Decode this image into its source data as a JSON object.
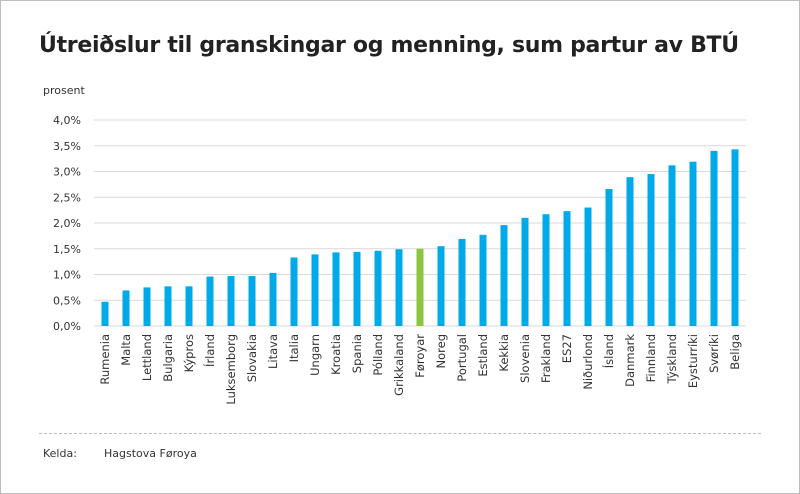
{
  "chart_data": {
    "type": "bar",
    "title": "Útreiðslur til granskingar og menning, sum partur av BTÚ",
    "ylabel": "prosent",
    "ylim": [
      0,
      4
    ],
    "yticks": [
      "0,0%",
      "0,5%",
      "1,0%",
      "1,5%",
      "2,0%",
      "2,5%",
      "3,0%",
      "3,5%",
      "4,0%"
    ],
    "grid": true,
    "categories": [
      "Rumenia",
      "Malta",
      "Lettland",
      "Bulgaria",
      "Kýpros",
      "Írland",
      "Luksemborg",
      "Slovakia",
      "Litava",
      "Italia",
      "Ungarn",
      "Kroatia",
      "Spania",
      "Pólland",
      "Grikkaland",
      "Føroyar",
      "Noreg",
      "Portugal",
      "Estland",
      "Kekkia",
      "Slovenia",
      "Frakland",
      "ES27",
      "Niðurlond",
      "Ísland",
      "Danmark",
      "Finnland",
      "Týskland",
      "Eysturríki",
      "Svøríki",
      "Beliga"
    ],
    "values": [
      0.47,
      0.69,
      0.75,
      0.77,
      0.77,
      0.96,
      0.97,
      0.97,
      1.03,
      1.33,
      1.39,
      1.43,
      1.44,
      1.46,
      1.49,
      1.5,
      1.55,
      1.69,
      1.77,
      1.96,
      2.1,
      2.17,
      2.23,
      2.3,
      2.66,
      2.89,
      2.95,
      3.12,
      3.19,
      3.4,
      3.43
    ],
    "highlight": "Føroyar",
    "colors": {
      "bar": "#00a9e8",
      "highlight": "#8cc63f",
      "grid": "#d9d9d9"
    }
  },
  "footer": {
    "source_label": "Kelda:",
    "source_value": "Hagstova Føroya"
  }
}
